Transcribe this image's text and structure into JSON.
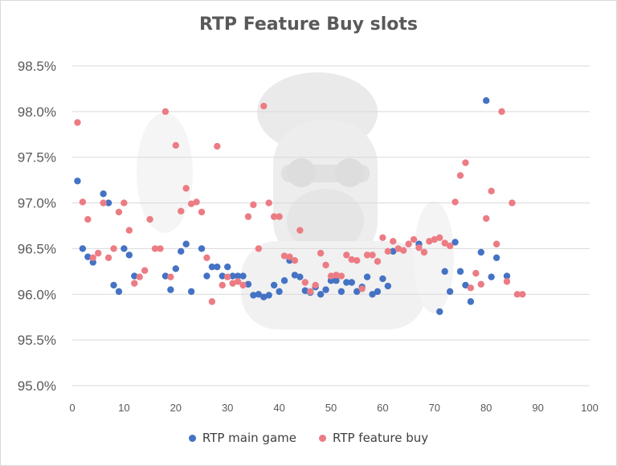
{
  "chart_data": {
    "type": "scatter",
    "title": "RTP Feature Buy slots",
    "xlabel": "",
    "ylabel": "",
    "xlim": [
      0,
      100
    ],
    "ylim": [
      95.0,
      98.5
    ],
    "x_ticks": [
      "0",
      "10",
      "20",
      "30",
      "40",
      "50",
      "60",
      "70",
      "80",
      "90",
      "100"
    ],
    "y_ticks": [
      "95.0%",
      "95.5%",
      "96.0%",
      "96.5%",
      "97.0%",
      "97.5%",
      "98.0%",
      "98.5%"
    ],
    "grid": "horizontal",
    "legend_position": "bottom",
    "series": [
      {
        "name": "RTP main game",
        "color": "#4472c4",
        "points": [
          [
            1,
            97.24
          ],
          [
            2,
            96.5
          ],
          [
            3,
            96.41
          ],
          [
            4,
            96.35
          ],
          [
            6,
            97.1
          ],
          [
            7,
            97.0
          ],
          [
            8,
            96.1
          ],
          [
            9,
            96.03
          ],
          [
            10,
            96.5
          ],
          [
            11,
            96.43
          ],
          [
            12,
            96.2
          ],
          [
            18,
            96.2
          ],
          [
            19,
            96.05
          ],
          [
            20,
            96.28
          ],
          [
            21,
            96.47
          ],
          [
            22,
            96.55
          ],
          [
            23,
            96.03
          ],
          [
            25,
            96.5
          ],
          [
            26,
            96.2
          ],
          [
            27,
            96.3
          ],
          [
            28,
            96.3
          ],
          [
            29,
            96.2
          ],
          [
            30,
            96.3
          ],
          [
            31,
            96.2
          ],
          [
            32,
            96.2
          ],
          [
            33,
            96.2
          ],
          [
            34,
            96.11
          ],
          [
            35,
            95.99
          ],
          [
            36,
            96.0
          ],
          [
            37,
            95.97
          ],
          [
            38,
            95.99
          ],
          [
            39,
            96.1
          ],
          [
            40,
            96.03
          ],
          [
            41,
            96.15
          ],
          [
            42,
            96.37
          ],
          [
            43,
            96.21
          ],
          [
            44,
            96.19
          ],
          [
            45,
            96.04
          ],
          [
            46,
            96.02
          ],
          [
            47,
            96.08
          ],
          [
            48,
            96.0
          ],
          [
            49,
            96.05
          ],
          [
            50,
            96.15
          ],
          [
            51,
            96.15
          ],
          [
            52,
            96.03
          ],
          [
            53,
            96.13
          ],
          [
            54,
            96.13
          ],
          [
            55,
            96.03
          ],
          [
            56,
            96.08
          ],
          [
            57,
            96.19
          ],
          [
            58,
            96.0
          ],
          [
            59,
            96.03
          ],
          [
            60,
            96.17
          ],
          [
            61,
            96.09
          ],
          [
            62,
            96.47
          ],
          [
            67,
            96.55
          ],
          [
            71,
            95.81
          ],
          [
            72,
            96.25
          ],
          [
            73,
            96.03
          ],
          [
            74,
            96.57
          ],
          [
            75,
            96.25
          ],
          [
            76,
            96.1
          ],
          [
            77,
            95.92
          ],
          [
            79,
            96.46
          ],
          [
            80,
            98.12
          ],
          [
            81,
            96.19
          ],
          [
            82,
            96.4
          ],
          [
            84,
            96.2
          ]
        ]
      },
      {
        "name": "RTP feature buy",
        "color": "#ec7c84",
        "points": [
          [
            1,
            97.88
          ],
          [
            2,
            97.01
          ],
          [
            3,
            96.82
          ],
          [
            4,
            96.4
          ],
          [
            5,
            96.45
          ],
          [
            6,
            97.0
          ],
          [
            7,
            96.4
          ],
          [
            8,
            96.5
          ],
          [
            9,
            96.9
          ],
          [
            10,
            97.0
          ],
          [
            11,
            96.7
          ],
          [
            12,
            96.12
          ],
          [
            13,
            96.19
          ],
          [
            14,
            96.26
          ],
          [
            15,
            96.82
          ],
          [
            16,
            96.5
          ],
          [
            17,
            96.5
          ],
          [
            18,
            98.0
          ],
          [
            19,
            96.19
          ],
          [
            20,
            97.63
          ],
          [
            21,
            96.91
          ],
          [
            22,
            97.16
          ],
          [
            23,
            96.99
          ],
          [
            24,
            97.01
          ],
          [
            25,
            96.9
          ],
          [
            26,
            96.4
          ],
          [
            27,
            95.92
          ],
          [
            28,
            97.62
          ],
          [
            29,
            96.1
          ],
          [
            30,
            96.19
          ],
          [
            31,
            96.12
          ],
          [
            32,
            96.14
          ],
          [
            33,
            96.1
          ],
          [
            34,
            96.85
          ],
          [
            35,
            96.98
          ],
          [
            36,
            96.5
          ],
          [
            37,
            98.06
          ],
          [
            38,
            97.0
          ],
          [
            39,
            96.85
          ],
          [
            40,
            96.85
          ],
          [
            41,
            96.42
          ],
          [
            42,
            96.41
          ],
          [
            43,
            96.37
          ],
          [
            44,
            96.7
          ],
          [
            45,
            96.13
          ],
          [
            46,
            96.03
          ],
          [
            47,
            96.1
          ],
          [
            48,
            96.45
          ],
          [
            49,
            96.32
          ],
          [
            50,
            96.2
          ],
          [
            51,
            96.21
          ],
          [
            52,
            96.2
          ],
          [
            53,
            96.43
          ],
          [
            54,
            96.38
          ],
          [
            55,
            96.37
          ],
          [
            56,
            96.06
          ],
          [
            57,
            96.43
          ],
          [
            58,
            96.43
          ],
          [
            59,
            96.36
          ],
          [
            60,
            96.62
          ],
          [
            61,
            96.47
          ],
          [
            62,
            96.58
          ],
          [
            63,
            96.5
          ],
          [
            64,
            96.48
          ],
          [
            65,
            96.55
          ],
          [
            66,
            96.6
          ],
          [
            67,
            96.51
          ],
          [
            68,
            96.46
          ],
          [
            69,
            96.58
          ],
          [
            70,
            96.6
          ],
          [
            71,
            96.62
          ],
          [
            72,
            96.56
          ],
          [
            73,
            96.53
          ],
          [
            74,
            97.01
          ],
          [
            75,
            97.3
          ],
          [
            76,
            97.44
          ],
          [
            77,
            96.07
          ],
          [
            78,
            96.23
          ],
          [
            79,
            96.11
          ],
          [
            80,
            96.83
          ],
          [
            81,
            97.13
          ],
          [
            82,
            96.55
          ],
          [
            83,
            98.0
          ],
          [
            84,
            96.14
          ],
          [
            85,
            97.0
          ],
          [
            86,
            96.0
          ],
          [
            87,
            96.0
          ]
        ]
      }
    ]
  }
}
